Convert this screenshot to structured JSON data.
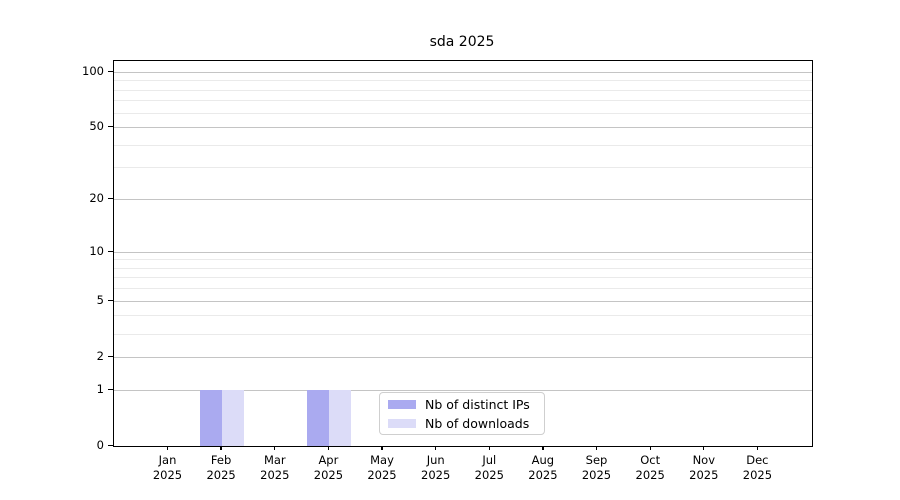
{
  "chart_data": {
    "type": "bar",
    "title": "sda 2025",
    "categories": [
      "Jan",
      "Feb",
      "Mar",
      "Apr",
      "May",
      "Jun",
      "Jul",
      "Aug",
      "Sep",
      "Oct",
      "Nov",
      "Dec"
    ],
    "category_year": "2025",
    "series": [
      {
        "name": "Nb of distinct IPs",
        "color": "#aaaaf0",
        "values": [
          0,
          1,
          0,
          1,
          0,
          0,
          0,
          0,
          0,
          0,
          0,
          0
        ]
      },
      {
        "name": "Nb of downloads",
        "color": "#dcdcf8",
        "values": [
          0,
          1,
          0,
          1,
          0,
          0,
          0,
          0,
          0,
          0,
          0,
          0
        ]
      }
    ],
    "y_axis": {
      "scale": "log10(1+y)",
      "major_ticks": [
        0,
        1,
        2,
        5,
        10,
        20,
        50,
        100
      ],
      "minor_ticks": [
        3,
        4,
        6,
        7,
        8,
        9,
        30,
        40,
        60,
        70,
        80,
        90
      ],
      "ylim": [
        0,
        114
      ]
    },
    "x_axis": {
      "tick_label_line1": "month",
      "tick_label_line2": "2025"
    },
    "grid": {
      "horizontal": true,
      "major_color": "#c4c4c4",
      "minor_color": "#eaeaea"
    },
    "legend": {
      "position": "inside-bottom-center",
      "border_color": "#cfcfcf"
    }
  }
}
